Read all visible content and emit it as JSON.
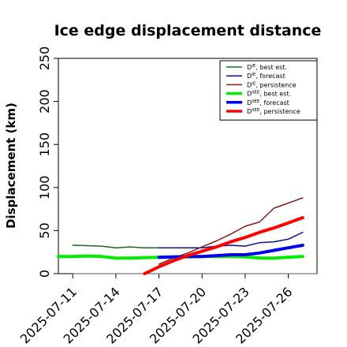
{
  "chart_data": {
    "type": "line",
    "title": "Ice edge displacement distance",
    "ylabel": "Displacement (km)",
    "xlabel": "",
    "ylim": [
      0,
      250
    ],
    "yticks": [
      0,
      50,
      100,
      150,
      200,
      250
    ],
    "xlim": [
      "2025-07-10",
      "2025-07-28"
    ],
    "xticks": [
      "2025-07-11",
      "2025-07-14",
      "2025-07-17",
      "2025-07-20",
      "2025-07-23",
      "2025-07-26"
    ],
    "highlighted_xtick": "2025-07-17",
    "highlight_color": "#228b22",
    "grid": false,
    "legend_position": "top-right",
    "reference_line": {
      "y": 0,
      "x_from": "2025-07-11",
      "x_to": "2025-07-28",
      "color": "#777777"
    },
    "series": [
      {
        "name": "DIE, best est.",
        "legend_base": "D",
        "legend_sup": "IE",
        "legend_rest": ", best est.",
        "color": "#1e6b1e",
        "width": 1.5,
        "x": [
          "2025-07-11",
          "2025-07-12",
          "2025-07-13",
          "2025-07-14",
          "2025-07-15",
          "2025-07-16",
          "2025-07-17"
        ],
        "y": [
          33,
          32.5,
          32,
          30,
          31,
          30,
          30
        ]
      },
      {
        "name": "DIE, forecast",
        "legend_base": "D",
        "legend_sup": "IE",
        "legend_rest": ", forecast",
        "color": "#10108c",
        "width": 1.5,
        "x": [
          "2025-07-17",
          "2025-07-18",
          "2025-07-19",
          "2025-07-20",
          "2025-07-21",
          "2025-07-22",
          "2025-07-23",
          "2025-07-24",
          "2025-07-25",
          "2025-07-26",
          "2025-07-27"
        ],
        "y": [
          30,
          30,
          30,
          30,
          32,
          33,
          32,
          36,
          37,
          40,
          48
        ]
      },
      {
        "name": "DIE, persistence",
        "legend_base": "D",
        "legend_sup": "IE",
        "legend_rest": ", persistence",
        "color": "#8b1a1a",
        "width": 1.5,
        "x": [
          "2025-07-17",
          "2025-07-18",
          "2025-07-19",
          "2025-07-20",
          "2025-07-21",
          "2025-07-22",
          "2025-07-23",
          "2025-07-24",
          "2025-07-25",
          "2025-07-26",
          "2025-07-27"
        ],
        "y": [
          11,
          18,
          24,
          31,
          38,
          46,
          55,
          60,
          76,
          82,
          88
        ]
      },
      {
        "name": "DIIEE, best est.",
        "legend_base": "D",
        "legend_sup": "IIEE",
        "legend_rest": ", best est.",
        "color": "#00ee00",
        "width": 4,
        "x": [
          "2025-07-10",
          "2025-07-11",
          "2025-07-12",
          "2025-07-13",
          "2025-07-14",
          "2025-07-15",
          "2025-07-16",
          "2025-07-17",
          "2025-07-18",
          "2025-07-19",
          "2025-07-20",
          "2025-07-21",
          "2025-07-22",
          "2025-07-23",
          "2025-07-24",
          "2025-07-25",
          "2025-07-26",
          "2025-07-27"
        ],
        "y": [
          20,
          20,
          20.5,
          20,
          18,
          18,
          18.5,
          19,
          19,
          19.5,
          20,
          20,
          20,
          19.5,
          18,
          18,
          19,
          20
        ]
      },
      {
        "name": "DIIEE, forecast",
        "legend_base": "D",
        "legend_sup": "IIEE",
        "legend_rest": ", forecast",
        "color": "#0000ee",
        "width": 4,
        "x": [
          "2025-07-17",
          "2025-07-18",
          "2025-07-19",
          "2025-07-20",
          "2025-07-21",
          "2025-07-22",
          "2025-07-23",
          "2025-07-24",
          "2025-07-25",
          "2025-07-26",
          "2025-07-27"
        ],
        "y": [
          19,
          19.5,
          20,
          20,
          21,
          22,
          22,
          24,
          27,
          30,
          33
        ]
      },
      {
        "name": "DIIEE, persistence",
        "legend_base": "D",
        "legend_sup": "IIEE",
        "legend_rest": ", persistence",
        "color": "#ff0000",
        "width": 4,
        "x": [
          "2025-07-16",
          "2025-07-17",
          "2025-07-18",
          "2025-07-19",
          "2025-07-20",
          "2025-07-21",
          "2025-07-22",
          "2025-07-23",
          "2025-07-24",
          "2025-07-25",
          "2025-07-26",
          "2025-07-27"
        ],
        "y": [
          0,
          8,
          15,
          21,
          26,
          31,
          37,
          42,
          48,
          53,
          59,
          65
        ]
      }
    ]
  }
}
